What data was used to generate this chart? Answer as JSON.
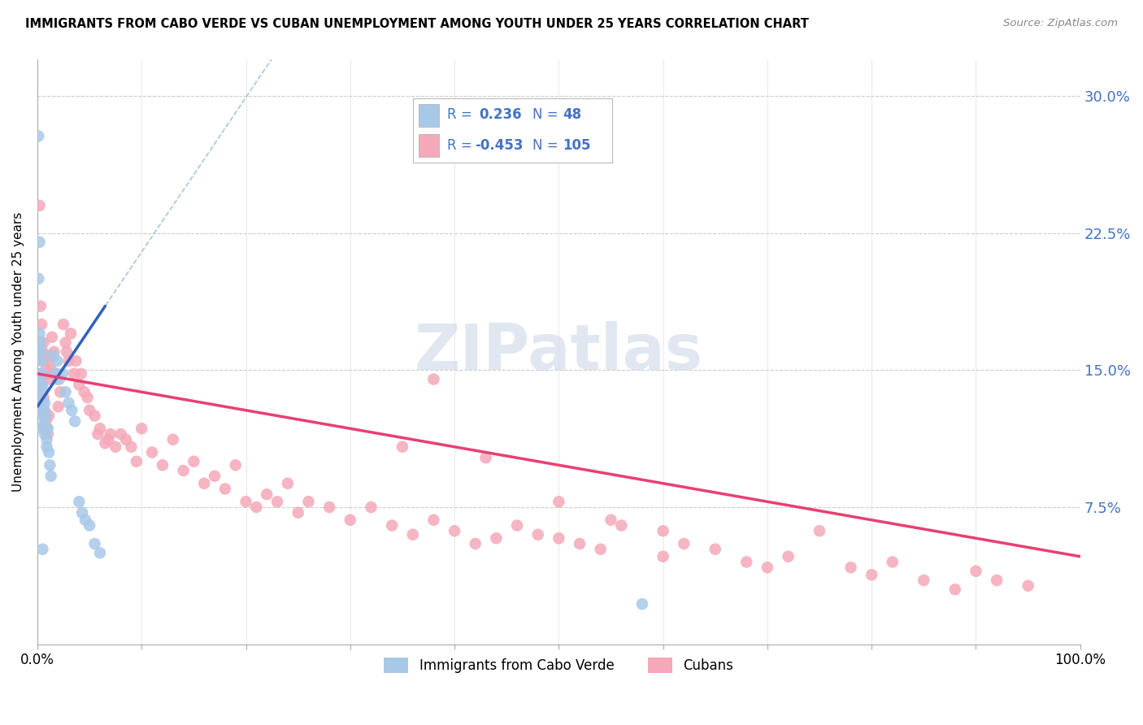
{
  "title": "IMMIGRANTS FROM CABO VERDE VS CUBAN UNEMPLOYMENT AMONG YOUTH UNDER 25 YEARS CORRELATION CHART",
  "source": "Source: ZipAtlas.com",
  "ylabel": "Unemployment Among Youth under 25 years",
  "y_ticks": [
    0.0,
    0.075,
    0.15,
    0.225,
    0.3
  ],
  "y_tick_labels": [
    "",
    "7.5%",
    "15.0%",
    "22.5%",
    "30.0%"
  ],
  "x_lim": [
    0.0,
    1.0
  ],
  "y_lim": [
    0.0,
    0.32
  ],
  "cabo_verde_R": 0.236,
  "cabo_verde_N": 48,
  "cuban_R": -0.453,
  "cuban_N": 105,
  "legend_label_1": "Immigrants from Cabo Verde",
  "legend_label_2": "Cubans",
  "cabo_verde_color": "#a8c8e8",
  "cuban_color": "#f5a8b8",
  "cabo_verde_line_color": "#3060c0",
  "cuban_line_color": "#e84070",
  "dashed_line_color": "#90b8d8",
  "watermark": "ZIPatlas",
  "cabo_verde_x": [
    0.001,
    0.001,
    0.002,
    0.002,
    0.003,
    0.003,
    0.003,
    0.004,
    0.004,
    0.004,
    0.004,
    0.005,
    0.005,
    0.005,
    0.005,
    0.006,
    0.006,
    0.007,
    0.007,
    0.007,
    0.008,
    0.008,
    0.009,
    0.009,
    0.01,
    0.011,
    0.012,
    0.013,
    0.015,
    0.017,
    0.019,
    0.021,
    0.024,
    0.027,
    0.03,
    0.033,
    0.036,
    0.04,
    0.043,
    0.046,
    0.05,
    0.055,
    0.06,
    0.001,
    0.002,
    0.003,
    0.005,
    0.58
  ],
  "cabo_verde_y": [
    0.145,
    0.2,
    0.22,
    0.17,
    0.16,
    0.148,
    0.138,
    0.155,
    0.148,
    0.14,
    0.128,
    0.142,
    0.132,
    0.125,
    0.118,
    0.128,
    0.12,
    0.132,
    0.125,
    0.115,
    0.125,
    0.118,
    0.112,
    0.108,
    0.118,
    0.105,
    0.098,
    0.092,
    0.158,
    0.148,
    0.155,
    0.145,
    0.148,
    0.138,
    0.132,
    0.128,
    0.122,
    0.078,
    0.072,
    0.068,
    0.065,
    0.055,
    0.05,
    0.278,
    0.16,
    0.165,
    0.052,
    0.022
  ],
  "cuban_x": [
    0.002,
    0.003,
    0.004,
    0.005,
    0.005,
    0.006,
    0.007,
    0.008,
    0.009,
    0.01,
    0.011,
    0.012,
    0.013,
    0.014,
    0.015,
    0.016,
    0.018,
    0.019,
    0.02,
    0.022,
    0.025,
    0.027,
    0.028,
    0.03,
    0.032,
    0.035,
    0.037,
    0.04,
    0.042,
    0.045,
    0.048,
    0.05,
    0.055,
    0.058,
    0.06,
    0.065,
    0.068,
    0.07,
    0.075,
    0.08,
    0.085,
    0.09,
    0.095,
    0.1,
    0.11,
    0.12,
    0.13,
    0.14,
    0.15,
    0.16,
    0.17,
    0.18,
    0.19,
    0.2,
    0.21,
    0.22,
    0.23,
    0.24,
    0.25,
    0.26,
    0.28,
    0.3,
    0.32,
    0.34,
    0.36,
    0.38,
    0.4,
    0.42,
    0.44,
    0.46,
    0.48,
    0.5,
    0.52,
    0.54,
    0.56,
    0.6,
    0.62,
    0.65,
    0.68,
    0.7,
    0.72,
    0.75,
    0.78,
    0.8,
    0.82,
    0.85,
    0.88,
    0.9,
    0.92,
    0.95,
    0.003,
    0.004,
    0.35,
    0.38,
    0.43,
    0.005,
    0.006,
    0.007,
    0.008,
    0.009,
    0.01,
    0.011,
    0.5,
    0.55,
    0.6
  ],
  "cuban_y": [
    0.24,
    0.185,
    0.175,
    0.16,
    0.155,
    0.165,
    0.155,
    0.15,
    0.148,
    0.145,
    0.155,
    0.158,
    0.15,
    0.168,
    0.148,
    0.16,
    0.148,
    0.145,
    0.13,
    0.138,
    0.175,
    0.165,
    0.16,
    0.155,
    0.17,
    0.148,
    0.155,
    0.142,
    0.148,
    0.138,
    0.135,
    0.128,
    0.125,
    0.115,
    0.118,
    0.11,
    0.112,
    0.115,
    0.108,
    0.115,
    0.112,
    0.108,
    0.1,
    0.118,
    0.105,
    0.098,
    0.112,
    0.095,
    0.1,
    0.088,
    0.092,
    0.085,
    0.098,
    0.078,
    0.075,
    0.082,
    0.078,
    0.088,
    0.072,
    0.078,
    0.075,
    0.068,
    0.075,
    0.065,
    0.06,
    0.068,
    0.062,
    0.055,
    0.058,
    0.065,
    0.06,
    0.058,
    0.055,
    0.052,
    0.065,
    0.048,
    0.055,
    0.052,
    0.045,
    0.042,
    0.048,
    0.062,
    0.042,
    0.038,
    0.045,
    0.035,
    0.03,
    0.04,
    0.035,
    0.032,
    0.145,
    0.148,
    0.108,
    0.145,
    0.102,
    0.138,
    0.135,
    0.128,
    0.122,
    0.118,
    0.115,
    0.125,
    0.078,
    0.068,
    0.062
  ]
}
